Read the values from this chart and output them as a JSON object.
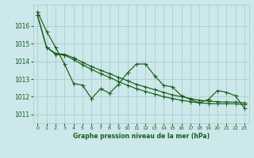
{
  "title": "Graphe pression niveau de la mer (hPa)",
  "bg_color": "#cce8ea",
  "grid_color": "#aacdd0",
  "line_color": "#1a5c1a",
  "ylim": [
    1010.5,
    1017.2
  ],
  "yticks": [
    1011,
    1012,
    1013,
    1014,
    1015,
    1016
  ],
  "x_ticks": [
    0,
    1,
    2,
    3,
    4,
    5,
    6,
    7,
    8,
    9,
    10,
    11,
    12,
    13,
    14,
    15,
    16,
    17,
    18,
    19,
    20,
    21,
    22,
    23
  ],
  "series1": [
    1016.8,
    1015.7,
    1014.8,
    1013.85,
    1012.75,
    1012.65,
    1011.9,
    1012.45,
    1012.2,
    1012.7,
    1013.35,
    1013.85,
    1013.85,
    1013.2,
    1012.65,
    1012.55,
    1012.05,
    1011.85,
    1011.65,
    1011.85,
    1012.35,
    1012.25,
    1012.05,
    1011.35
  ],
  "series2": [
    1016.6,
    1014.8,
    1014.45,
    1014.4,
    1014.2,
    1013.95,
    1013.7,
    1013.5,
    1013.3,
    1013.1,
    1012.9,
    1012.7,
    1012.55,
    1012.4,
    1012.25,
    1012.1,
    1012.0,
    1011.9,
    1011.8,
    1011.75,
    1011.72,
    1011.7,
    1011.7,
    1011.65
  ],
  "series3": [
    1016.6,
    1014.8,
    1014.4,
    1014.35,
    1014.1,
    1013.8,
    1013.55,
    1013.3,
    1013.1,
    1012.85,
    1012.65,
    1012.45,
    1012.3,
    1012.15,
    1012.0,
    1011.9,
    1011.8,
    1011.72,
    1011.65,
    1011.62,
    1011.6,
    1011.6,
    1011.6,
    1011.55
  ]
}
